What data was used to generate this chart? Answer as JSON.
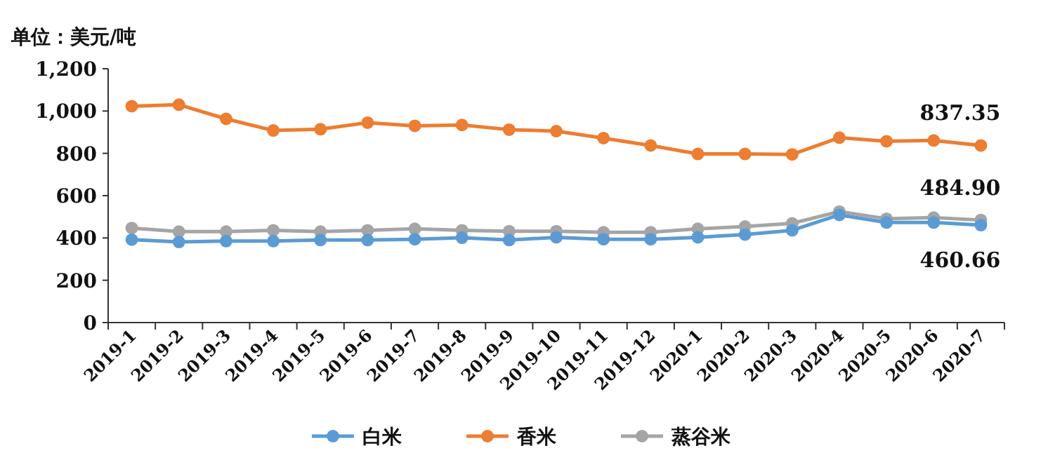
{
  "chart_data": {
    "type": "line",
    "ylabel": "单位：美元/吨",
    "categories": [
      "2019-1",
      "2019-2",
      "2019-3",
      "2019-4",
      "2019-5",
      "2019-6",
      "2019-7",
      "2019-8",
      "2019-9",
      "2019-10",
      "2019-11",
      "2019-12",
      "2020-1",
      "2020-2",
      "2020-3",
      "2020-4",
      "2020-5",
      "2020-6",
      "2020-7"
    ],
    "series": [
      {
        "name": "白米",
        "color": "#5b9bd5",
        "values": [
          392,
          381,
          385,
          385,
          390,
          390,
          394,
          401,
          390,
          403,
          394,
          394,
          403,
          416,
          436,
          509,
          473,
          473,
          460.66
        ],
        "value_labels": [
          null,
          null,
          null,
          null,
          null,
          null,
          null,
          null,
          null,
          null,
          null,
          null,
          null,
          null,
          null,
          null,
          null,
          null,
          "460.66"
        ]
      },
      {
        "name": "香米",
        "color": "#ed7d31",
        "values": [
          1023,
          1030,
          963,
          908,
          914,
          945,
          930,
          934,
          912,
          905,
          872,
          837,
          797,
          797,
          795,
          874,
          857,
          861,
          837.35
        ],
        "value_labels": [
          null,
          null,
          null,
          null,
          null,
          null,
          null,
          null,
          null,
          null,
          null,
          null,
          null,
          null,
          null,
          null,
          null,
          null,
          "837.35"
        ]
      },
      {
        "name": "蒸谷米",
        "color": "#a5a5a5",
        "values": [
          447,
          430,
          430,
          436,
          430,
          436,
          443,
          436,
          432,
          432,
          427,
          427,
          443,
          454,
          469,
          525,
          491,
          496,
          484.9
        ],
        "value_labels": [
          null,
          null,
          null,
          null,
          null,
          null,
          null,
          null,
          null,
          null,
          null,
          null,
          null,
          null,
          null,
          null,
          null,
          null,
          "484.90"
        ]
      }
    ],
    "ylim": [
      0,
      1200
    ],
    "yticks": [
      0,
      200,
      400,
      600,
      800,
      {
        "value": 1000,
        "label": "1,000"
      },
      {
        "value": 1200,
        "label": "1,200"
      }
    ],
    "grid": false,
    "legend": "bottom",
    "marker": "circle",
    "line_style": "solid"
  }
}
